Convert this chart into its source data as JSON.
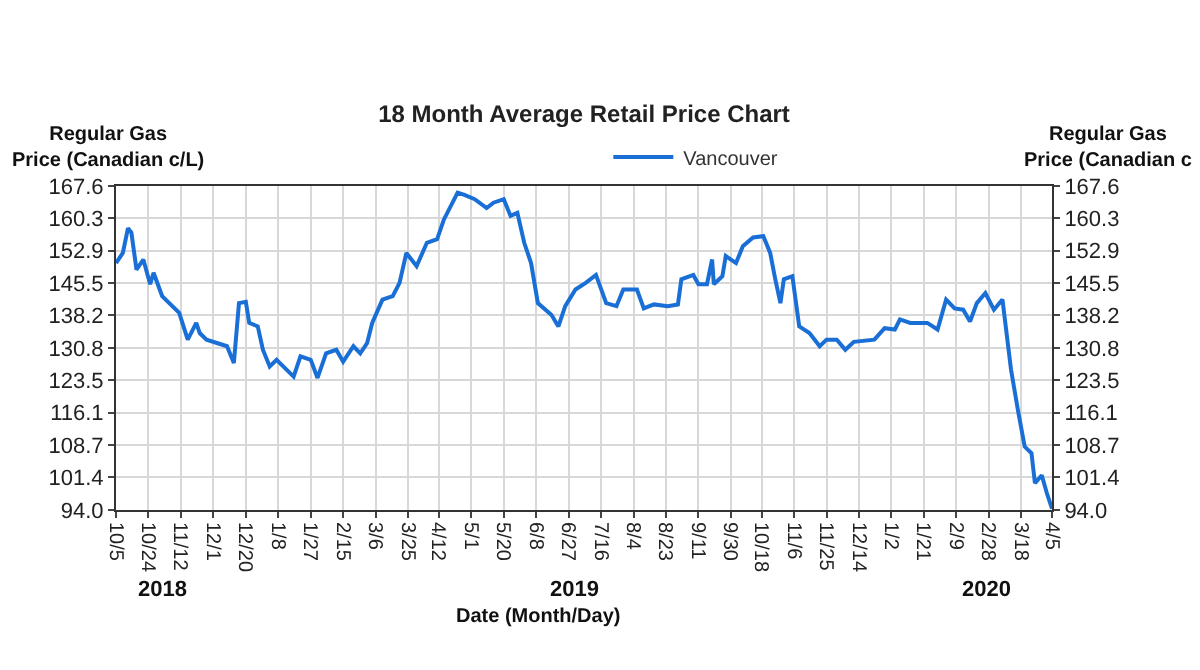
{
  "chart_data": {
    "type": "line",
    "title": "18 Month Average Retail Price Chart",
    "xlabel": "Date (Month/Day)",
    "ylabel": "Regular Gas\nPrice (Canadian c/L)",
    "y2label": "Regular Gas\nPrice (Canadian c",
    "annotations": [
      "2018",
      "2019",
      "2020"
    ],
    "x": [
      "2018-10-05",
      "2018-10-09",
      "2018-10-12",
      "2018-10-14",
      "2018-10-17",
      "2018-10-21",
      "2018-10-25",
      "2018-10-27",
      "2018-11-01",
      "2018-11-11",
      "2018-11-16",
      "2018-11-21",
      "2018-11-23",
      "2018-11-27",
      "2018-12-09",
      "2018-12-13",
      "2018-12-16",
      "2018-12-20",
      "2018-12-22",
      "2018-12-27",
      "2018-12-30",
      "2019-01-03",
      "2019-01-07",
      "2019-01-17",
      "2019-01-21",
      "2019-01-27",
      "2019-01-31",
      "2019-02-05",
      "2019-02-11",
      "2019-02-15",
      "2019-02-21",
      "2019-02-25",
      "2019-03-01",
      "2019-03-04",
      "2019-03-10",
      "2019-03-16",
      "2019-03-20",
      "2019-03-24",
      "2019-03-30",
      "2019-04-05",
      "2019-04-11",
      "2019-04-15",
      "2019-04-23",
      "2019-04-27",
      "2019-05-03",
      "2019-05-10",
      "2019-05-14",
      "2019-05-20",
      "2019-05-24",
      "2019-05-28",
      "2019-06-01",
      "2019-06-05",
      "2019-06-09",
      "2019-06-17",
      "2019-06-21",
      "2019-06-25",
      "2019-07-01",
      "2019-07-07",
      "2019-07-13",
      "2019-07-19",
      "2019-07-25",
      "2019-07-29",
      "2019-08-06",
      "2019-08-10",
      "2019-08-16",
      "2019-08-24",
      "2019-08-30",
      "2019-09-01",
      "2019-09-08",
      "2019-09-11",
      "2019-09-16",
      "2019-09-19",
      "2019-09-20",
      "2019-09-25",
      "2019-09-27",
      "2019-10-03",
      "2019-10-07",
      "2019-10-13",
      "2019-10-19",
      "2019-10-23",
      "2019-10-26",
      "2019-10-29",
      "2019-10-31",
      "2019-11-05",
      "2019-11-09",
      "2019-11-15",
      "2019-11-21",
      "2019-11-25",
      "2019-12-01",
      "2019-12-06",
      "2019-12-11",
      "2019-12-23",
      "2019-12-29",
      "2020-01-04",
      "2020-01-07",
      "2020-01-13",
      "2020-01-23",
      "2020-01-29",
      "2020-02-03",
      "2020-02-08",
      "2020-02-13",
      "2020-02-17",
      "2020-02-21",
      "2020-02-26",
      "2020-03-02",
      "2020-03-07",
      "2020-03-12",
      "2020-03-16",
      "2020-03-20",
      "2020-03-24",
      "2020-03-26",
      "2020-03-30",
      "2020-04-02",
      "2020-04-05"
    ],
    "series": [
      {
        "name": "Vancouver",
        "color": "#1a6fd6",
        "values": [
          150.1,
          152.4,
          158.0,
          157.0,
          148.6,
          150.9,
          145.3,
          147.9,
          142.6,
          138.8,
          132.7,
          136.5,
          134.2,
          132.7,
          131.2,
          127.4,
          141.0,
          141.3,
          136.5,
          135.7,
          130.4,
          126.6,
          128.1,
          124.3,
          128.9,
          128.1,
          124.0,
          129.6,
          130.4,
          127.7,
          131.2,
          129.6,
          131.9,
          136.5,
          141.8,
          142.6,
          145.6,
          152.4,
          149.4,
          154.7,
          155.5,
          160.0,
          166.1,
          165.6,
          164.6,
          162.6,
          163.8,
          164.6,
          160.8,
          161.5,
          154.7,
          150.1,
          141.0,
          138.3,
          135.7,
          140.3,
          144.1,
          145.6,
          147.4,
          141.0,
          140.3,
          144.1,
          144.1,
          139.8,
          140.7,
          140.3,
          140.7,
          146.4,
          147.4,
          145.3,
          145.3,
          150.9,
          145.3,
          147.1,
          151.7,
          150.1,
          153.9,
          155.9,
          156.2,
          152.4,
          146.4,
          141.0,
          146.4,
          147.1,
          135.7,
          134.2,
          131.2,
          132.7,
          132.7,
          130.4,
          132.2,
          132.7,
          135.3,
          135.0,
          137.3,
          136.5,
          136.5,
          135.0,
          141.8,
          139.8,
          139.5,
          136.8,
          141.0,
          143.3,
          139.5,
          141.8,
          125.9,
          116.8,
          108.4,
          106.9,
          100.1,
          101.9,
          97.8,
          94.3
        ]
      }
    ],
    "xlim": [
      "2018-10-05",
      "2020-04-05"
    ],
    "xticks": [
      {
        "value": "2018-10-05",
        "label": "10/5"
      },
      {
        "value": "2018-10-24",
        "label": "10/24"
      },
      {
        "value": "2018-11-12",
        "label": "11/12"
      },
      {
        "value": "2018-12-01",
        "label": "12/1"
      },
      {
        "value": "2018-12-20",
        "label": "12/20"
      },
      {
        "value": "2019-01-08",
        "label": "1/8"
      },
      {
        "value": "2019-01-27",
        "label": "1/27"
      },
      {
        "value": "2019-02-15",
        "label": "2/15"
      },
      {
        "value": "2019-03-06",
        "label": "3/6"
      },
      {
        "value": "2019-03-25",
        "label": "3/25"
      },
      {
        "value": "2019-04-12",
        "label": "4/12"
      },
      {
        "value": "2019-05-01",
        "label": "5/1"
      },
      {
        "value": "2019-05-20",
        "label": "5/20"
      },
      {
        "value": "2019-06-08",
        "label": "6/8"
      },
      {
        "value": "2019-06-27",
        "label": "6/27"
      },
      {
        "value": "2019-07-16",
        "label": "7/16"
      },
      {
        "value": "2019-08-04",
        "label": "8/4"
      },
      {
        "value": "2019-08-23",
        "label": "8/23"
      },
      {
        "value": "2019-09-11",
        "label": "9/11"
      },
      {
        "value": "2019-09-30",
        "label": "9/30"
      },
      {
        "value": "2019-10-18",
        "label": "10/18"
      },
      {
        "value": "2019-11-06",
        "label": "11/6"
      },
      {
        "value": "2019-11-25",
        "label": "11/25"
      },
      {
        "value": "2019-12-14",
        "label": "12/14"
      },
      {
        "value": "2020-01-02",
        "label": "1/2"
      },
      {
        "value": "2020-01-21",
        "label": "1/21"
      },
      {
        "value": "2020-02-09",
        "label": "2/9"
      },
      {
        "value": "2020-02-28",
        "label": "2/28"
      },
      {
        "value": "2020-03-18",
        "label": "3/18"
      },
      {
        "value": "2020-04-05",
        "label": "4/5"
      }
    ],
    "ylim": [
      94.0,
      167.6
    ],
    "yticks": [
      {
        "value": 94.0,
        "label": "94.0"
      },
      101.4,
      108.7,
      116.1,
      123.5,
      130.8,
      138.2,
      145.5,
      152.9,
      160.3,
      167.6
    ],
    "y2lim": [
      94.0,
      167.6
    ],
    "y2ticks": [
      {
        "value": 94.0,
        "label": "94.0"
      },
      101.4,
      108.7,
      116.1,
      123.5,
      130.8,
      138.2,
      145.5,
      152.9,
      160.3,
      167.6
    ],
    "grid": true,
    "legend": "top",
    "marker": "none",
    "line_style": "solid"
  }
}
